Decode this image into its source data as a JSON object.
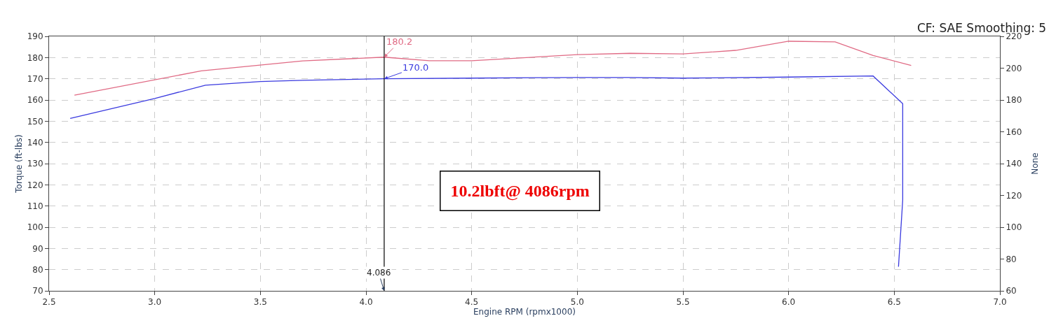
{
  "chart_data": {
    "type": "line",
    "subtitle": "CF: SAE Smoothing: 5",
    "xlabel": "Engine RPM (rpmx1000)",
    "ylabel": "Torque (ft-lbs)",
    "y2label": "None",
    "series": [
      {
        "color": "#e06a84",
        "x": [
          2.62,
          3.22,
          3.7,
          4.086,
          4.3,
          4.5,
          5.0,
          5.25,
          5.5,
          5.75,
          6.0,
          6.22,
          6.4,
          6.58
        ],
        "values": [
          162.3,
          173.7,
          178.4,
          180.2,
          178.5,
          178.5,
          181.4,
          182.0,
          181.7,
          183.4,
          187.7,
          187.4,
          181.0,
          176.3
        ]
      },
      {
        "color": "#3a3adf",
        "x": [
          2.6,
          3.0,
          3.24,
          3.5,
          3.7,
          4.086,
          4.5,
          5.0,
          5.25,
          5.5,
          6.0,
          6.4,
          6.54,
          6.54,
          6.52
        ],
        "values": [
          151.3,
          160.7,
          167.0,
          168.7,
          169.3,
          170.0,
          170.3,
          170.6,
          170.6,
          170.3,
          170.8,
          171.3,
          158.3,
          112.8,
          81.4
        ]
      }
    ],
    "annotations": [
      {
        "text": "180.2",
        "x": 4.086,
        "y": 180.2
      },
      {
        "text": "170.0",
        "x": 4.086,
        "y": 170.0
      },
      "10.2lbft@ 4086rpm"
    ],
    "ref_lines": [
      {
        "axis": "x",
        "value": 4.086,
        "label": "4.086",
        "color": "#000000"
      }
    ],
    "xlim": [
      2.5,
      7.0
    ],
    "xticks": [
      2.5,
      {
        "value": 3,
        "label": "3.0"
      },
      3.5,
      {
        "value": 4,
        "label": "4.0"
      },
      4.5,
      {
        "value": 5,
        "label": "5.0"
      },
      5.5,
      {
        "value": 6,
        "label": "6.0"
      },
      6.5,
      {
        "value": 7,
        "label": "7.0"
      }
    ],
    "ylim": [
      70,
      190
    ],
    "yticks": [
      70,
      80,
      90,
      100,
      110,
      120,
      130,
      140,
      150,
      160,
      170,
      180,
      190
    ],
    "y2lim": [
      60,
      220
    ],
    "y2ticks": [
      60,
      80,
      100,
      120,
      140,
      160,
      180,
      200,
      220
    ],
    "grid": true,
    "marker": "none",
    "line_style": "solid"
  }
}
